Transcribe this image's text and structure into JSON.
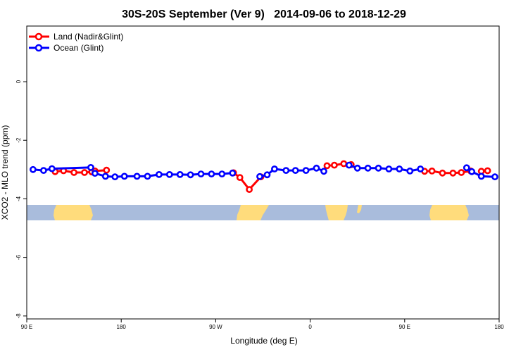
{
  "chart_data": {
    "type": "line",
    "title": "30S-20S September (Ver 9)   2014-09-06 to 2018-12-29",
    "xlabel": "Longitude (deg E)",
    "ylabel": "XCO2 - MLO trend (ppm)",
    "xlim": [
      90,
      540
    ],
    "ylim": [
      -8.1,
      1.9
    ],
    "x_ticks": [
      {
        "value": 90,
        "label": "90 E"
      },
      {
        "value": 180,
        "label": "180"
      },
      {
        "value": 270,
        "label": "90 W"
      },
      {
        "value": 360,
        "label": "0"
      },
      {
        "value": 450,
        "label": "90 E"
      },
      {
        "value": 540,
        "label": "180"
      }
    ],
    "y_ticks": [
      {
        "value": 0,
        "label": "0"
      },
      {
        "value": -2,
        "label": "-2"
      },
      {
        "value": -4,
        "label": "-4"
      },
      {
        "value": -6,
        "label": "-6"
      },
      {
        "value": -8,
        "label": "-8"
      }
    ],
    "legend_position": "top-left",
    "series": [
      {
        "name": "Land (Nadir&Glint)",
        "color": "#ff0000",
        "segments": [
          {
            "x": [
              117,
              125,
              135,
              145,
              152
            ],
            "y": [
              -3.07,
              -3.04,
              -3.1,
              -3.1,
              -3.08
            ]
          },
          {
            "x": [
              155,
              166
            ],
            "y": [
              -3.05,
              -3.02
            ]
          },
          {
            "x": [
              287,
              293,
              302,
              313
            ],
            "y": [
              -3.11,
              -3.27,
              -3.68,
              -3.25
            ]
          },
          {
            "x": [
              376,
              383,
              392,
              399
            ],
            "y": [
              -2.87,
              -2.85,
              -2.8,
              -2.83
            ]
          },
          {
            "x": [
              469,
              476,
              486,
              496,
              504,
              513
            ],
            "y": [
              -3.06,
              -3.05,
              -3.12,
              -3.12,
              -3.1,
              -3.05
            ]
          },
          {
            "x": [
              523,
              529
            ],
            "y": [
              -3.06,
              -3.04
            ]
          }
        ]
      },
      {
        "name": "Ocean (Glint)",
        "color": "#0000ff",
        "segments": [
          {
            "x": [
              96,
              106,
              114,
              151
            ],
            "y": [
              -3.0,
              -3.03,
              -2.97,
              -2.93
            ]
          },
          {
            "x": [
              155,
              165,
              174,
              183,
              195,
              205,
              216,
              226,
              236,
              246,
              256,
              266,
              276,
              286
            ],
            "y": [
              -3.13,
              -3.23,
              -3.25,
              -3.23,
              -3.23,
              -3.23,
              -3.17,
              -3.17,
              -3.17,
              -3.18,
              -3.15,
              -3.15,
              -3.15,
              -3.12
            ]
          },
          {
            "x": [
              312,
              319,
              326,
              337,
              346,
              356,
              366,
              373
            ],
            "y": [
              -3.24,
              -3.18,
              -2.98,
              -3.03,
              -3.03,
              -3.03,
              -2.95,
              -3.06
            ]
          },
          {
            "x": [
              397,
              405,
              415,
              425,
              435,
              445,
              455,
              465
            ],
            "y": [
              -2.85,
              -2.95,
              -2.95,
              -2.95,
              -2.98,
              -2.98,
              -3.05,
              -2.98
            ]
          },
          {
            "x": [
              509,
              514,
              523,
              536
            ],
            "y": [
              -2.94,
              -3.07,
              -3.23,
              -3.25
            ]
          }
        ]
      }
    ]
  }
}
